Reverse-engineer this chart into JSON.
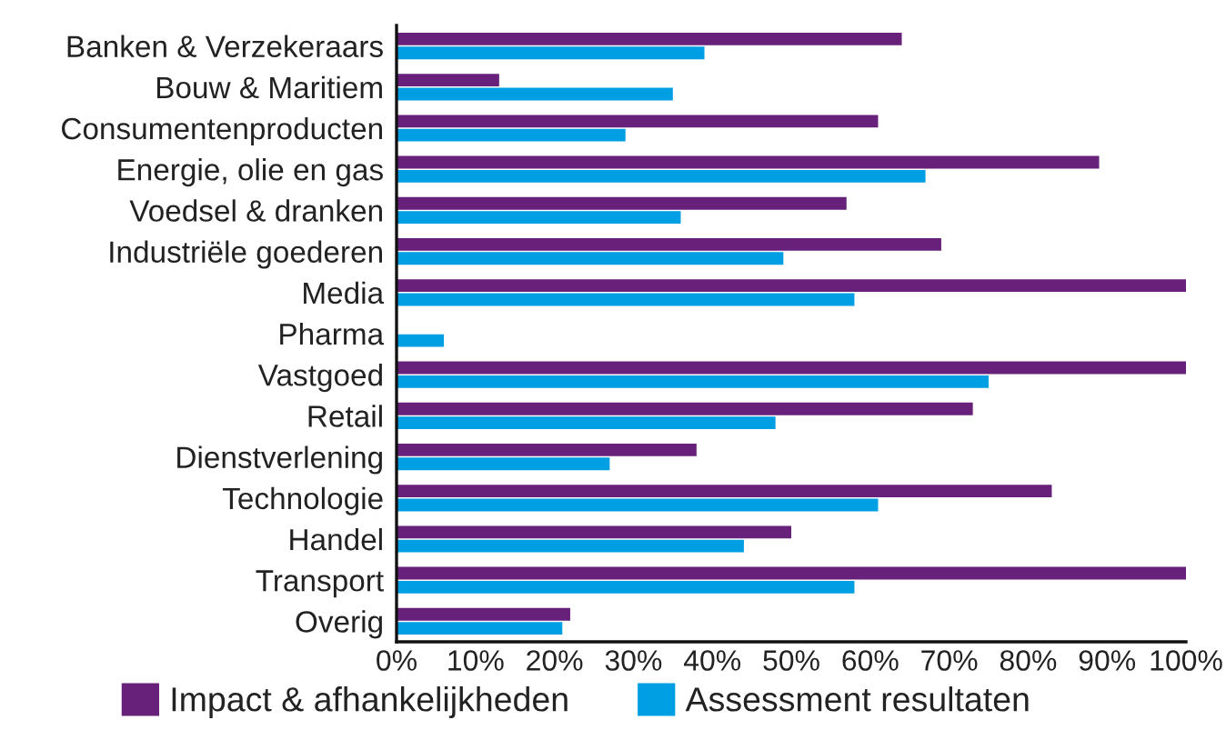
{
  "chart_data": {
    "type": "bar",
    "orientation": "horizontal",
    "categories": [
      "Banken & Verzekeraars",
      "Bouw & Maritiem",
      "Consumentenproducten",
      "Energie, olie en gas",
      "Voedsel & dranken",
      "Industriële goederen",
      "Media",
      "Pharma",
      "Vastgoed",
      "Retail",
      "Dienstverlening",
      "Technologie",
      "Handel",
      "Transport",
      "Overig"
    ],
    "series": [
      {
        "name": "Impact & afhankelijkheden",
        "color": "#68217a",
        "values": [
          64,
          13,
          61,
          89,
          57,
          69,
          100,
          0,
          100,
          73,
          38,
          83,
          50,
          100,
          22
        ]
      },
      {
        "name": "Assessment resultaten",
        "color": "#009fe3",
        "values": [
          39,
          35,
          29,
          67,
          36,
          49,
          58,
          6,
          75,
          48,
          27,
          61,
          44,
          58,
          21
        ]
      }
    ],
    "xlim": [
      0,
      100
    ],
    "xticks": [
      {
        "value": 0,
        "label": "0%"
      },
      {
        "value": 10,
        "label": "10%"
      },
      {
        "value": 20,
        "label": "20%"
      },
      {
        "value": 30,
        "label": "30%"
      },
      {
        "value": 40,
        "label": "40%"
      },
      {
        "value": 50,
        "label": "50%"
      },
      {
        "value": 60,
        "label": "60%"
      },
      {
        "value": 70,
        "label": "70%"
      },
      {
        "value": 80,
        "label": "80%"
      },
      {
        "value": 90,
        "label": "90%"
      },
      {
        "value": 100,
        "label": "100%"
      }
    ],
    "grid": false,
    "legend": "bottom"
  }
}
